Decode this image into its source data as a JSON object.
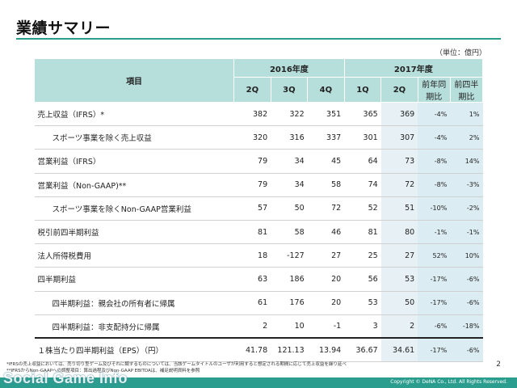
{
  "page": {
    "title": "業績サマリー",
    "unit": "（単位：億円）",
    "page_number": "2",
    "copyright": "Copyright © DeNA Co., Ltd. All Rights Reserved.",
    "watermark": "Social Game Info",
    "footnotes": [
      "*IFRSの売上収益においては、売り切り型ゲーム及びそれに類するものについては、当該ゲームタイトルのユーザが利用すると想定される期間に応じて売上収益を繰り延べ",
      "**IFRSからNon-GAAPへの調整項目：算出過程及びNon-GAAP EBITDAは、補足説明資料を参照"
    ]
  },
  "table": {
    "item_header": "項目",
    "year_2016": "2016年度",
    "year_2017": "2017年度",
    "quarters_2016": [
      "2Q",
      "3Q",
      "4Q"
    ],
    "quarters_2017": [
      "1Q",
      "2Q"
    ],
    "yoy_header": "前年同期比",
    "qoq_header": "前四半期比",
    "rows": [
      {
        "label": "売上収益（IFRS）*",
        "v": [
          "382",
          "322",
          "351",
          "365",
          "369"
        ],
        "yoy": "-4%",
        "qoq": "1%"
      },
      {
        "label": "スポーツ事業を除く売上収益",
        "v": [
          "320",
          "316",
          "337",
          "301",
          "307"
        ],
        "yoy": "-4%",
        "qoq": "2%"
      },
      {
        "label": "営業利益（IFRS）",
        "v": [
          "79",
          "34",
          "45",
          "64",
          "73"
        ],
        "yoy": "-8%",
        "qoq": "14%"
      },
      {
        "label": "営業利益（Non-GAAP)**",
        "v": [
          "79",
          "34",
          "58",
          "74",
          "72"
        ],
        "yoy": "-8%",
        "qoq": "-3%"
      },
      {
        "label": "スポーツ事業を除くNon-GAAP営業利益",
        "v": [
          "57",
          "50",
          "72",
          "52",
          "51"
        ],
        "yoy": "-10%",
        "qoq": "-2%"
      },
      {
        "label": "税引前四半期利益",
        "v": [
          "81",
          "58",
          "46",
          "81",
          "80"
        ],
        "yoy": "-1%",
        "qoq": "-1%"
      },
      {
        "label": "法人所得税費用",
        "v": [
          "18",
          "-127",
          "27",
          "25",
          "27"
        ],
        "yoy": "52%",
        "qoq": "10%"
      },
      {
        "label": "四半期利益",
        "v": [
          "63",
          "186",
          "20",
          "56",
          "53"
        ],
        "yoy": "-17%",
        "qoq": "-6%"
      },
      {
        "label": "四半期利益：親会社の所有者に帰属",
        "v": [
          "61",
          "176",
          "20",
          "53",
          "50"
        ],
        "yoy": "-17%",
        "qoq": "-6%"
      },
      {
        "label": "四半期利益：非支配持分に帰属",
        "v": [
          "2",
          "10",
          "-1",
          "3",
          "2"
        ],
        "yoy": "-6%",
        "qoq": "-18%"
      },
      {
        "label": "１株当たり四半期利益（EPS）（円）",
        "v": [
          "41.78",
          "121.13",
          "13.94",
          "36.67",
          "34.61"
        ],
        "yoy": "-17%",
        "qoq": "-6%"
      }
    ]
  }
}
